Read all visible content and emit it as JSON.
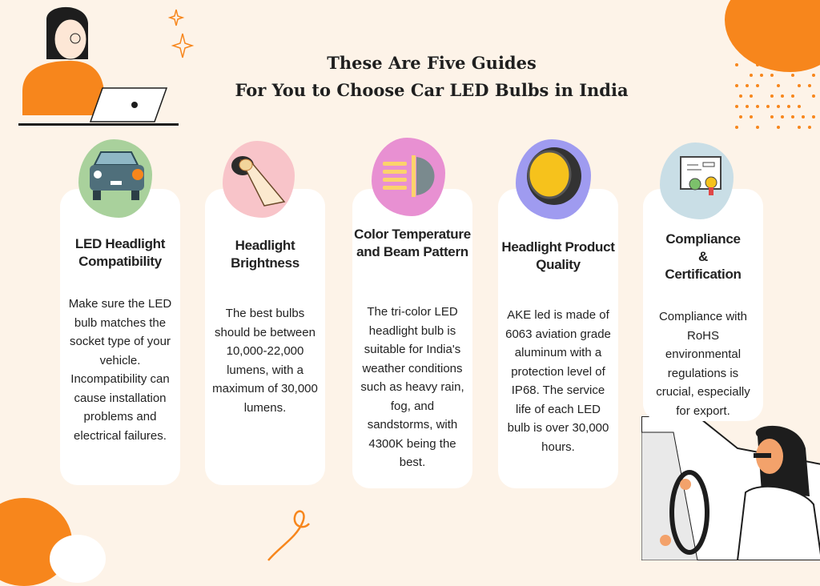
{
  "title": {
    "line1": "These Are Five Guides",
    "line2": "For You to Choose Car LED Bulbs in India"
  },
  "cards": [
    {
      "title": "LED Headlight Compatibility",
      "body": "Make sure the LED bulb matches the socket type of your vehicle. Incompatibility can cause installation problems and electrical failures.",
      "icon": "car-headlight-icon",
      "color": "#a9d19c"
    },
    {
      "title": "Headlight Brightness",
      "body": "The best bulbs should be between 10,000-22,000 lumens, with a maximum of 30,000 lumens.",
      "icon": "flashlight-beam-icon",
      "color": "#f8c4c9"
    },
    {
      "title": "Color Temperature and Beam Pattern",
      "body": "The tri-color LED headlight bulb is suitable for India's weather conditions such as heavy rain, fog, and sandstorms, with 4300K being the best.",
      "icon": "low-beam-icon",
      "color": "#e890d2"
    },
    {
      "title": "Headlight Product Quality",
      "body": "AKE led is made of 6063 aviation grade aluminum with a protection level of IP68. The service life of each LED bulb is over 30,000 hours.",
      "icon": "headlight-lens-icon",
      "color": "#9f9bf0"
    },
    {
      "title": "Compliance & Certification",
      "body": "Compliance with RoHS environmental regulations is crucial, especially for export.",
      "icon": "certificate-icon",
      "color": "#c9dee6"
    }
  ]
}
